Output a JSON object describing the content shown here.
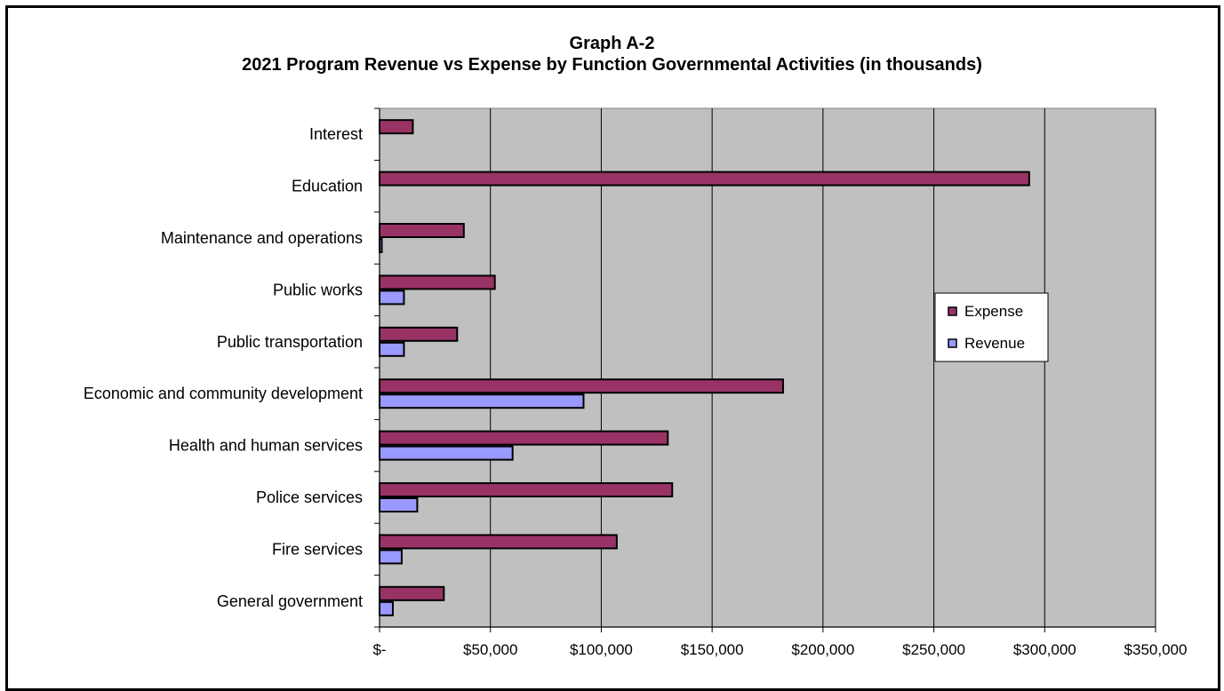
{
  "chart_data": {
    "type": "bar",
    "orientation": "horizontal",
    "title": "Graph A-2",
    "subtitle": "2021 Program Revenue vs Expense by Function Governmental Activities (in thousands)",
    "categories": [
      "Interest",
      "Education",
      "Maintenance and operations",
      "Public works",
      "Public transportation",
      "Economic and community development",
      "Health and human services",
      "Police services",
      "Fire services",
      "General government"
    ],
    "series": [
      {
        "name": "Expense",
        "color": "#993366",
        "values": [
          15000,
          293000,
          38000,
          52000,
          35000,
          182000,
          130000,
          132000,
          107000,
          29000
        ]
      },
      {
        "name": "Revenue",
        "color": "#9999FF",
        "values": [
          0,
          0,
          1000,
          11000,
          11000,
          92000,
          60000,
          17000,
          10000,
          6000
        ]
      }
    ],
    "xlim": [
      0,
      350000
    ],
    "xticks": [
      0,
      50000,
      100000,
      150000,
      200000,
      250000,
      300000,
      350000
    ],
    "xtick_labels": [
      "$-",
      "$50,000",
      "$100,000",
      "$150,000",
      "$200,000",
      "$250,000",
      "$300,000",
      "$350,000"
    ],
    "grid": "vertical",
    "plot_background": "#C0C0C0",
    "legend": "right"
  }
}
